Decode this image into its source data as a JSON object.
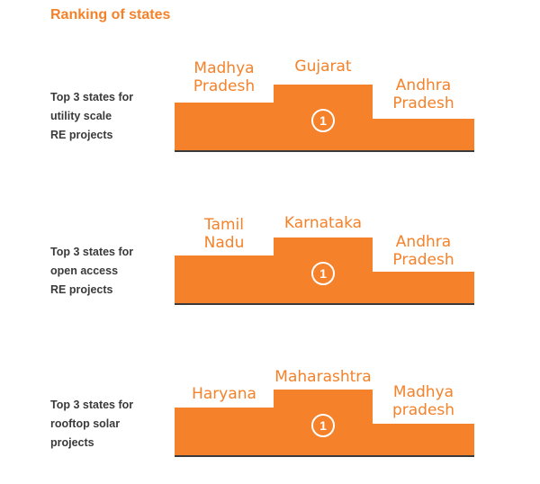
{
  "title": "Ranking of states",
  "sections": [
    {
      "category": "Top 3 states for\nutility scale\nRE projects",
      "first": "Gujarat",
      "second": "Madhya\nPradesh",
      "third": "Andhra\nPradesh",
      "rank_label": "1"
    },
    {
      "category": "Top 3 states for\nopen access\nRE projects",
      "first": "Karnataka",
      "second": "Tamil\nNadu",
      "third": "Andhra\nPradesh",
      "rank_label": "1"
    },
    {
      "category": "Top 3 states for\nrooftop solar\nprojects",
      "first": "Maharashtra",
      "second": "Haryana",
      "third": "Madhya\npradesh",
      "rank_label": "1"
    }
  ],
  "colors": {
    "accent": "#f5822a",
    "text": "#3a3a3a",
    "baseline": "#3a3a3a"
  }
}
